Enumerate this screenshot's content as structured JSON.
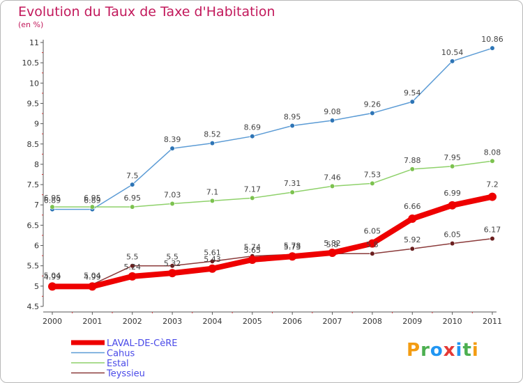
{
  "header": {
    "title": "Evolution du Taux de Taxe d'Habitation",
    "subtitle": "(en %)"
  },
  "logo_text": "Proxiti",
  "colors": {
    "title": "#c2185b",
    "axis": "#555555",
    "legend_text": "#4a4ae8"
  },
  "chart_data": {
    "type": "line",
    "title": "Evolution du Taux de Taxe d'Habitation",
    "subtitle": "(en %)",
    "x": [
      "2000",
      "2001",
      "2002",
      "2003",
      "2004",
      "2005",
      "2006",
      "2007",
      "2008",
      "2009",
      "2010",
      "2011"
    ],
    "y_ticks": [
      "4.5",
      "5",
      "5.5",
      "6",
      "6.5",
      "7",
      "7.5",
      "8",
      "8.5",
      "9",
      "9.5",
      "10",
      "10.5",
      "11"
    ],
    "ylim": [
      4.5,
      11
    ],
    "grid": false,
    "legend_position": "bottom-left",
    "series": [
      {
        "name": "Cahus",
        "color": "#5b9bd5",
        "marker_color": "#2e75b6",
        "values": [
          6.89,
          6.89,
          7.5,
          8.39,
          8.52,
          8.69,
          8.95,
          9.08,
          9.26,
          9.54,
          10.54,
          10.86
        ],
        "labels": [
          "6.89",
          "6.89",
          "7.5",
          "8.39",
          "8.52",
          "8.69",
          "8.95",
          "9.08",
          "9.26",
          "9.54",
          "10.54",
          "10.86"
        ],
        "label_pos": "above",
        "thick": false
      },
      {
        "name": "Estal",
        "color": "#8ed16a",
        "marker_color": "#7cc24f",
        "values": [
          6.95,
          6.95,
          6.95,
          7.03,
          7.1,
          7.17,
          7.31,
          7.46,
          7.53,
          7.88,
          7.95,
          8.08
        ],
        "labels": [
          "6.95",
          "6.95",
          "6.95",
          "7.03",
          "7.1",
          "7.17",
          "7.31",
          "7.46",
          "7.53",
          "7.88",
          "7.95",
          "8.08"
        ],
        "label_pos": "above",
        "thick": false
      },
      {
        "name": "Teyssieu",
        "color": "#8b3a3a",
        "marker_color": "#6b1f1f",
        "values": [
          5.04,
          5.04,
          5.5,
          5.5,
          5.61,
          5.74,
          5.78,
          5.8,
          5.8,
          5.92,
          6.05,
          6.17
        ],
        "labels": [
          "5.04",
          "5.04",
          "5.5",
          "5.5",
          "5.61",
          "5.74",
          "5.78",
          "5.8",
          "5.8",
          "5.92",
          "6.05",
          "6.17"
        ],
        "label_pos": "above",
        "thick": false
      },
      {
        "name": "LAVAL-DE-CèRE",
        "color": "#ee0000",
        "marker_color": "#ee0000",
        "values": [
          4.99,
          4.99,
          5.24,
          5.32,
          5.43,
          5.65,
          5.73,
          5.82,
          6.05,
          6.66,
          6.99,
          7.2
        ],
        "labels": [
          "4.99",
          "4.99",
          "5.24",
          "5.32",
          "5.43",
          "5.65",
          "5.73",
          "5.82",
          "6.05",
          "6.66",
          "6.99",
          "7.2"
        ],
        "label_pos": "mixed",
        "thick": true
      }
    ],
    "legend": [
      "LAVAL-DE-CèRE",
      "Cahus",
      "Estal",
      "Teyssieu"
    ]
  }
}
